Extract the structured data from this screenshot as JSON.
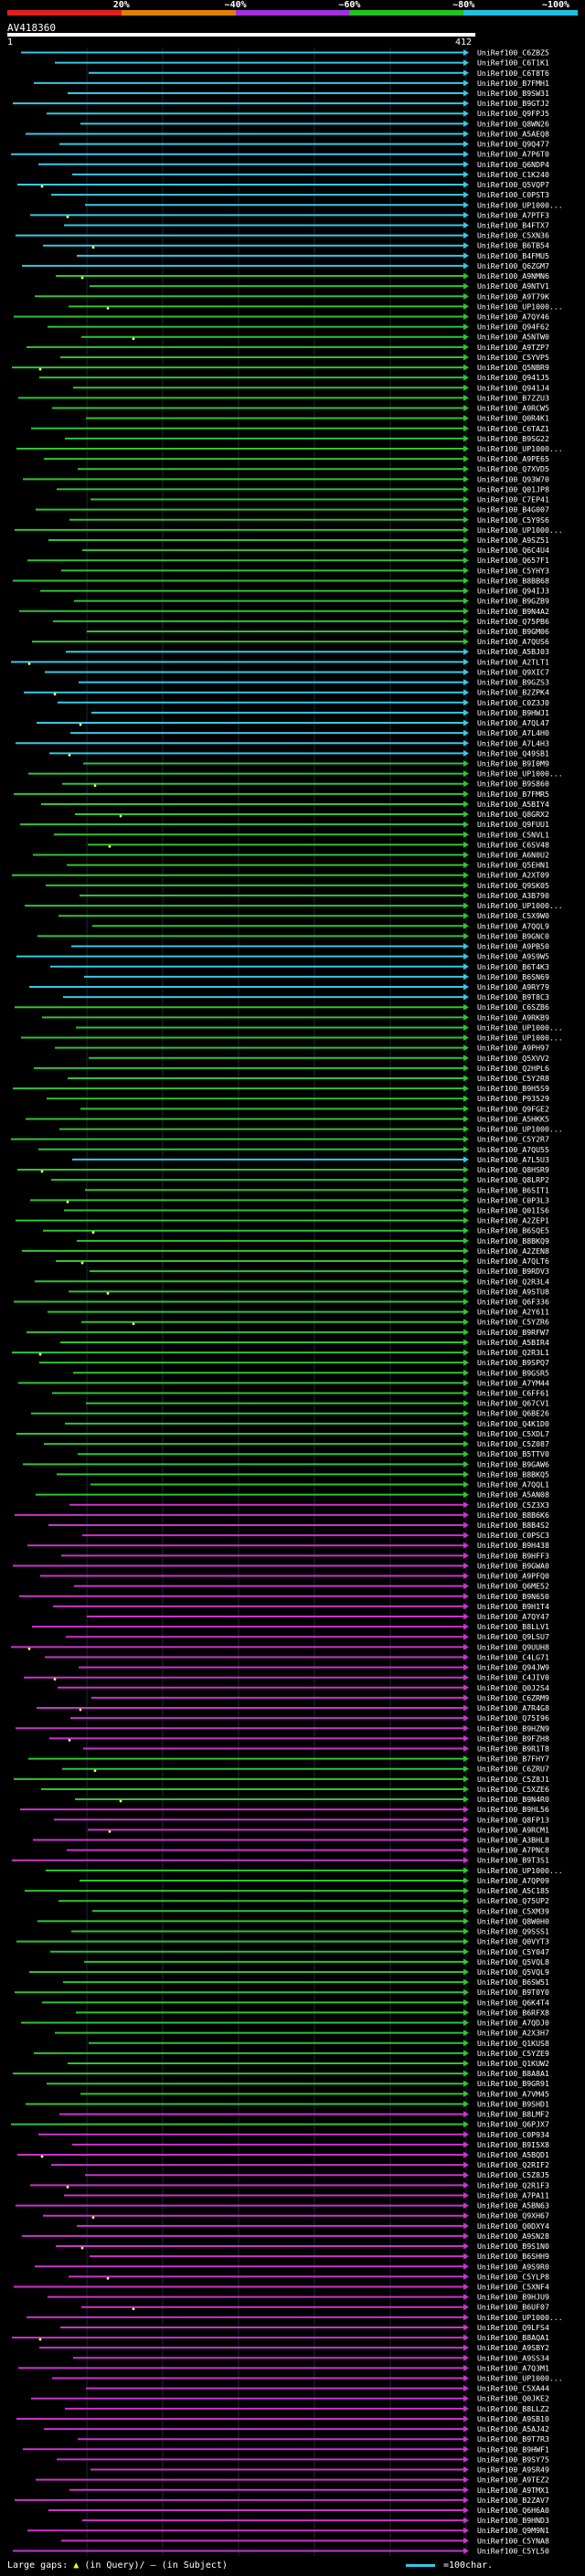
{
  "scale": {
    "labels": [
      "20%",
      "~40%",
      "~60%",
      "~80%",
      "~100%"
    ],
    "colors": [
      "#e02020",
      "#e08000",
      "#a030e0",
      "#20c020",
      "#20c0e0"
    ]
  },
  "query": {
    "name": "AV418360",
    "start": "1",
    "end": "412"
  },
  "series_colors": {
    "cyan": "#37c8e6",
    "green": "#2fc42f",
    "magenta": "#cc33cc"
  },
  "legend": {
    "gaps_label": "Large gaps:",
    "query_marker": "▲",
    "query_text": "(in Query)/",
    "subject_marker": "—",
    "subject_text": "(in Subject)",
    "scale_text": "=100char."
  },
  "hits": [
    {
      "id": "UniRef100_C6ZBZ5",
      "c": "cyan"
    },
    {
      "id": "UniRef100_C6T1K1",
      "c": "cyan"
    },
    {
      "id": "UniRef100_C6T8T6",
      "c": "cyan"
    },
    {
      "id": "UniRef100_B7FMH1",
      "c": "cyan"
    },
    {
      "id": "UniRef100_B9SW31",
      "c": "cyan"
    },
    {
      "id": "UniRef100_B9GTJ2",
      "c": "cyan"
    },
    {
      "id": "UniRef100_Q9FPJ5",
      "c": "cyan"
    },
    {
      "id": "UniRef100_Q8WN26",
      "c": "cyan"
    },
    {
      "id": "UniRef100_A5AEQ8",
      "c": "cyan"
    },
    {
      "id": "UniRef100_Q9Q477",
      "c": "cyan"
    },
    {
      "id": "UniRef100_A7P6T0",
      "c": "cyan"
    },
    {
      "id": "UniRef100_Q6NDP4",
      "c": "cyan"
    },
    {
      "id": "UniRef100_C1K240",
      "c": "cyan"
    },
    {
      "id": "UniRef100_Q5VQP7",
      "c": "cyan"
    },
    {
      "id": "UniRef100_C0PST3",
      "c": "cyan"
    },
    {
      "id": "UniRef100_UP1000...",
      "c": "cyan"
    },
    {
      "id": "UniRef100_A7PTF3",
      "c": "cyan"
    },
    {
      "id": "UniRef100_B4FTX7",
      "c": "cyan"
    },
    {
      "id": "UniRef100_C5XN36",
      "c": "cyan"
    },
    {
      "id": "UniRef100_B6TB54",
      "c": "cyan"
    },
    {
      "id": "UniRef100_B4FMU5",
      "c": "cyan"
    },
    {
      "id": "UniRef100_Q6ZGM7",
      "c": "cyan"
    },
    {
      "id": "UniRef100_A9NMN6",
      "c": "green"
    },
    {
      "id": "UniRef100_A9NTV1",
      "c": "green"
    },
    {
      "id": "UniRef100_A9T79K",
      "c": "green"
    },
    {
      "id": "UniRef100_UP1000...",
      "c": "green"
    },
    {
      "id": "UniRef100_A7QY46",
      "c": "green"
    },
    {
      "id": "UniRef100_Q94F62",
      "c": "green"
    },
    {
      "id": "UniRef100_A5NTW0",
      "c": "green"
    },
    {
      "id": "UniRef100_A9TZP7",
      "c": "green"
    },
    {
      "id": "UniRef100_C5YVP5",
      "c": "green"
    },
    {
      "id": "UniRef100_Q5NBR9",
      "c": "green"
    },
    {
      "id": "UniRef100_Q941J5",
      "c": "green"
    },
    {
      "id": "UniRef100_Q941J4",
      "c": "green"
    },
    {
      "id": "UniRef100_B7ZZU3",
      "c": "green"
    },
    {
      "id": "UniRef100_A9RCW5",
      "c": "green"
    },
    {
      "id": "UniRef100_Q0R4K1",
      "c": "green"
    },
    {
      "id": "UniRef100_C6TAZ1",
      "c": "green"
    },
    {
      "id": "UniRef100_B9SG22",
      "c": "green"
    },
    {
      "id": "UniRef100_UP1000...",
      "c": "green"
    },
    {
      "id": "UniRef100_A9PE65",
      "c": "green"
    },
    {
      "id": "UniRef100_Q7XVD5",
      "c": "green"
    },
    {
      "id": "UniRef100_Q93W70",
      "c": "green"
    },
    {
      "id": "UniRef100_Q01JP8",
      "c": "green"
    },
    {
      "id": "UniRef100_C7EP41",
      "c": "green"
    },
    {
      "id": "UniRef100_B4G007",
      "c": "green"
    },
    {
      "id": "UniRef100_C5Y9S6",
      "c": "green"
    },
    {
      "id": "UniRef100_UP1000...",
      "c": "green"
    },
    {
      "id": "UniRef100_A9SZ51",
      "c": "green"
    },
    {
      "id": "UniRef100_Q6C4U4",
      "c": "green"
    },
    {
      "id": "UniRef100_Q657F1",
      "c": "green"
    },
    {
      "id": "UniRef100_C5YHY3",
      "c": "green"
    },
    {
      "id": "UniRef100_B8BB68",
      "c": "green"
    },
    {
      "id": "UniRef100_Q94IJ3",
      "c": "green"
    },
    {
      "id": "UniRef100_B9GZB9",
      "c": "green"
    },
    {
      "id": "UniRef100_B9N4A2",
      "c": "green"
    },
    {
      "id": "UniRef100_Q75PB6",
      "c": "green"
    },
    {
      "id": "UniRef100_B9GM06",
      "c": "green"
    },
    {
      "id": "UniRef100_A7QUS6",
      "c": "green"
    },
    {
      "id": "UniRef100_A5BJ03",
      "c": "cyan"
    },
    {
      "id": "UniRef100_A2TLT1",
      "c": "cyan"
    },
    {
      "id": "UniRef100_Q9XIC7",
      "c": "cyan"
    },
    {
      "id": "UniRef100_B9GZS3",
      "c": "cyan"
    },
    {
      "id": "UniRef100_B2ZPK4",
      "c": "cyan"
    },
    {
      "id": "UniRef100_C0Z3J0",
      "c": "cyan"
    },
    {
      "id": "UniRef100_B9HWJ1",
      "c": "cyan"
    },
    {
      "id": "UniRef100_A7QL47",
      "c": "cyan"
    },
    {
      "id": "UniRef100_A7L4H0",
      "c": "cyan"
    },
    {
      "id": "UniRef100_A7L4H3",
      "c": "cyan"
    },
    {
      "id": "UniRef100_Q49SB1",
      "c": "cyan"
    },
    {
      "id": "UniRef100_B9I0M9",
      "c": "green"
    },
    {
      "id": "UniRef100_UP1000...",
      "c": "green"
    },
    {
      "id": "UniRef100_B9S860",
      "c": "green"
    },
    {
      "id": "UniRef100_B7FMR5",
      "c": "green"
    },
    {
      "id": "UniRef100_A5BIY4",
      "c": "green"
    },
    {
      "id": "UniRef100_Q8GRX2",
      "c": "green"
    },
    {
      "id": "UniRef100_Q9FUU1",
      "c": "green"
    },
    {
      "id": "UniRef100_C5NVL1",
      "c": "green"
    },
    {
      "id": "UniRef100_C6SV48",
      "c": "green"
    },
    {
      "id": "UniRef100_A6N0U2",
      "c": "green"
    },
    {
      "id": "UniRef100_Q5EHN1",
      "c": "green"
    },
    {
      "id": "UniRef100_A2XT09",
      "c": "green"
    },
    {
      "id": "UniRef100_Q9SK05",
      "c": "green"
    },
    {
      "id": "UniRef100_A3B790",
      "c": "green"
    },
    {
      "id": "UniRef100_UP1000...",
      "c": "green"
    },
    {
      "id": "UniRef100_C5X9W0",
      "c": "green"
    },
    {
      "id": "UniRef100_A7QQL9",
      "c": "green"
    },
    {
      "id": "UniRef100_B9GNC0",
      "c": "green"
    },
    {
      "id": "UniRef100_A9PB50",
      "c": "cyan"
    },
    {
      "id": "UniRef100_A9S9W5",
      "c": "cyan"
    },
    {
      "id": "UniRef100_B6T4K3",
      "c": "cyan"
    },
    {
      "id": "UniRef100_B6SN69",
      "c": "cyan"
    },
    {
      "id": "UniRef100_A9RY79",
      "c": "cyan"
    },
    {
      "id": "UniRef100_B9T8C3",
      "c": "cyan"
    },
    {
      "id": "UniRef100_C6SZB6",
      "c": "green"
    },
    {
      "id": "UniRef100_A9RKB9",
      "c": "green"
    },
    {
      "id": "UniRef100_UP1000...",
      "c": "green"
    },
    {
      "id": "UniRef100_UP1000...",
      "c": "green"
    },
    {
      "id": "UniRef100_A9PH97",
      "c": "green"
    },
    {
      "id": "UniRef100_Q5XVV2",
      "c": "green"
    },
    {
      "id": "UniRef100_Q2HPL6",
      "c": "green"
    },
    {
      "id": "UniRef100_C5Y2R8",
      "c": "green"
    },
    {
      "id": "UniRef100_B9H5S9",
      "c": "green"
    },
    {
      "id": "UniRef100_P93529",
      "c": "green"
    },
    {
      "id": "UniRef100_Q9FGE2",
      "c": "green"
    },
    {
      "id": "UniRef100_A5HKK5",
      "c": "green"
    },
    {
      "id": "UniRef100_UP1000...",
      "c": "green"
    },
    {
      "id": "UniRef100_C5Y2R7",
      "c": "green"
    },
    {
      "id": "UniRef100_A7QU55",
      "c": "green"
    },
    {
      "id": "UniRef100_A7L5U3",
      "c": "cyan"
    },
    {
      "id": "UniRef100_Q8HSR9",
      "c": "green"
    },
    {
      "id": "UniRef100_Q8LRP2",
      "c": "green"
    },
    {
      "id": "UniRef100_B6SIT1",
      "c": "green"
    },
    {
      "id": "UniRef100_C0P3L3",
      "c": "green"
    },
    {
      "id": "UniRef100_Q01IS6",
      "c": "green"
    },
    {
      "id": "UniRef100_A2ZEP1",
      "c": "green"
    },
    {
      "id": "UniRef100_B6SQE5",
      "c": "green"
    },
    {
      "id": "UniRef100_B8BKQ9",
      "c": "green"
    },
    {
      "id": "UniRef100_A2ZEN8",
      "c": "green"
    },
    {
      "id": "UniRef100_A7QLT6",
      "c": "green"
    },
    {
      "id": "UniRef100_B9RDV3",
      "c": "green"
    },
    {
      "id": "UniRef100_Q2R3L4",
      "c": "green"
    },
    {
      "id": "UniRef100_A9STU8",
      "c": "green"
    },
    {
      "id": "UniRef100_Q6F336",
      "c": "green"
    },
    {
      "id": "UniRef100_A2Y611",
      "c": "green"
    },
    {
      "id": "UniRef100_C5YZR6",
      "c": "green"
    },
    {
      "id": "UniRef100_B9RFW7",
      "c": "green"
    },
    {
      "id": "UniRef100_A5BIR4",
      "c": "green"
    },
    {
      "id": "UniRef100_Q2R3L1",
      "c": "green"
    },
    {
      "id": "UniRef100_B9SPQ7",
      "c": "green"
    },
    {
      "id": "UniRef100_B9GSR5",
      "c": "green"
    },
    {
      "id": "UniRef100_A7YM44",
      "c": "green"
    },
    {
      "id": "UniRef100_C6FF61",
      "c": "green"
    },
    {
      "id": "UniRef100_Q67CV1",
      "c": "green"
    },
    {
      "id": "UniRef100_Q6BE26",
      "c": "green"
    },
    {
      "id": "UniRef100_Q4K1D0",
      "c": "green"
    },
    {
      "id": "UniRef100_C5XDL7",
      "c": "green"
    },
    {
      "id": "UniRef100_C5Z087",
      "c": "green"
    },
    {
      "id": "UniRef100_B5TTV0",
      "c": "green"
    },
    {
      "id": "UniRef100_B9GAW6",
      "c": "green"
    },
    {
      "id": "UniRef100_B8BKQ5",
      "c": "green"
    },
    {
      "id": "UniRef100_A7QQL1",
      "c": "green"
    },
    {
      "id": "UniRef100_A5AN08",
      "c": "green"
    },
    {
      "id": "UniRef100_C5Z3X3",
      "c": "magenta"
    },
    {
      "id": "UniRef100_B8B6K6",
      "c": "magenta"
    },
    {
      "id": "UniRef100_B8B4S2",
      "c": "magenta"
    },
    {
      "id": "UniRef100_C0PSC3",
      "c": "magenta"
    },
    {
      "id": "UniRef100_B9H438",
      "c": "magenta"
    },
    {
      "id": "UniRef100_B9HFF3",
      "c": "magenta"
    },
    {
      "id": "UniRef100_B9GWA0",
      "c": "magenta"
    },
    {
      "id": "UniRef100_A9PFQ0",
      "c": "magenta"
    },
    {
      "id": "UniRef100_Q6ME52",
      "c": "magenta"
    },
    {
      "id": "UniRef100_B9N650",
      "c": "magenta"
    },
    {
      "id": "UniRef100_B9H1T4",
      "c": "magenta"
    },
    {
      "id": "UniRef100_A7QY47",
      "c": "magenta"
    },
    {
      "id": "UniRef100_B8LLV1",
      "c": "magenta"
    },
    {
      "id": "UniRef100_Q9LSU7",
      "c": "magenta"
    },
    {
      "id": "UniRef100_Q9UUH8",
      "c": "magenta"
    },
    {
      "id": "UniRef100_C4LG71",
      "c": "magenta"
    },
    {
      "id": "UniRef100_Q94JW9",
      "c": "magenta"
    },
    {
      "id": "UniRef100_C4JIV0",
      "c": "magenta"
    },
    {
      "id": "UniRef100_Q0J2S4",
      "c": "magenta"
    },
    {
      "id": "UniRef100_C6ZRM9",
      "c": "magenta"
    },
    {
      "id": "UniRef100_A7R4G8",
      "c": "magenta"
    },
    {
      "id": "UniRef100_Q75I96",
      "c": "magenta"
    },
    {
      "id": "UniRef100_B9HZN9",
      "c": "magenta"
    },
    {
      "id": "UniRef100_B9FZH8",
      "c": "magenta"
    },
    {
      "id": "UniRef100_B9R1T8",
      "c": "magenta"
    },
    {
      "id": "UniRef100_B7FHY7",
      "c": "green"
    },
    {
      "id": "UniRef100_C6ZRU7",
      "c": "green"
    },
    {
      "id": "UniRef100_C5Z8J1",
      "c": "green"
    },
    {
      "id": "UniRef100_C5XZE6",
      "c": "green"
    },
    {
      "id": "UniRef100_B9N4R0",
      "c": "green"
    },
    {
      "id": "UniRef100_B9HL56",
      "c": "magenta"
    },
    {
      "id": "UniRef100_Q8FP13",
      "c": "magenta"
    },
    {
      "id": "UniRef100_A9RCM1",
      "c": "magenta"
    },
    {
      "id": "UniRef100_A3BHL8",
      "c": "magenta"
    },
    {
      "id": "UniRef100_A7PNC8",
      "c": "magenta"
    },
    {
      "id": "UniRef100_B9T3S1",
      "c": "magenta"
    },
    {
      "id": "UniRef100_UP1000...",
      "c": "green"
    },
    {
      "id": "UniRef100_A7QP09",
      "c": "green"
    },
    {
      "id": "UniRef100_A5C185",
      "c": "green"
    },
    {
      "id": "UniRef100_Q75UP2",
      "c": "green"
    },
    {
      "id": "UniRef100_C5XM39",
      "c": "green"
    },
    {
      "id": "UniRef100_Q8W0H0",
      "c": "green"
    },
    {
      "id": "UniRef100_Q9SSS1",
      "c": "green"
    },
    {
      "id": "UniRef100_Q0VYT3",
      "c": "green"
    },
    {
      "id": "UniRef100_C5Y047",
      "c": "green"
    },
    {
      "id": "UniRef100_Q5VQL8",
      "c": "green"
    },
    {
      "id": "UniRef100_Q5VQL9",
      "c": "green"
    },
    {
      "id": "UniRef100_B6SW51",
      "c": "green"
    },
    {
      "id": "UniRef100_B9T0Y0",
      "c": "green"
    },
    {
      "id": "UniRef100_Q6K4T4",
      "c": "green"
    },
    {
      "id": "UniRef100_B6RFX8",
      "c": "green"
    },
    {
      "id": "UniRef100_A7QDJ0",
      "c": "green"
    },
    {
      "id": "UniRef100_A2X3H7",
      "c": "green"
    },
    {
      "id": "UniRef100_Q1KUS8",
      "c": "green"
    },
    {
      "id": "UniRef100_C5YZE9",
      "c": "green"
    },
    {
      "id": "UniRef100_Q1KUW2",
      "c": "green"
    },
    {
      "id": "UniRef100_B8A8A1",
      "c": "green"
    },
    {
      "id": "UniRef100_B9GR91",
      "c": "green"
    },
    {
      "id": "UniRef100_A7VM45",
      "c": "green"
    },
    {
      "id": "UniRef100_B9SHD1",
      "c": "green"
    },
    {
      "id": "UniRef100_B8LMF2",
      "c": "magenta"
    },
    {
      "id": "UniRef100_Q6PJX7",
      "c": "green"
    },
    {
      "id": "UniRef100_C0P934",
      "c": "magenta"
    },
    {
      "id": "UniRef100_B9I5X8",
      "c": "magenta"
    },
    {
      "id": "UniRef100_A5BQD1",
      "c": "magenta"
    },
    {
      "id": "UniRef100_Q2RIF2",
      "c": "magenta"
    },
    {
      "id": "UniRef100_C5Z8J5",
      "c": "magenta"
    },
    {
      "id": "UniRef100_Q2R1F3",
      "c": "magenta"
    },
    {
      "id": "UniRef100_A7PA11",
      "c": "magenta"
    },
    {
      "id": "UniRef100_A5BN63",
      "c": "magenta"
    },
    {
      "id": "UniRef100_Q9XH67",
      "c": "magenta"
    },
    {
      "id": "UniRef100_Q0DXY4",
      "c": "magenta"
    },
    {
      "id": "UniRef100_A9SN28",
      "c": "magenta"
    },
    {
      "id": "UniRef100_B9S1N0",
      "c": "magenta"
    },
    {
      "id": "UniRef100_B6SHH9",
      "c": "magenta"
    },
    {
      "id": "UniRef100_A9S9R0",
      "c": "magenta"
    },
    {
      "id": "UniRef100_C5YLP8",
      "c": "magenta"
    },
    {
      "id": "UniRef100_C5XNF4",
      "c": "magenta"
    },
    {
      "id": "UniRef100_B9HJU9",
      "c": "magenta"
    },
    {
      "id": "UniRef100_B6UF07",
      "c": "magenta"
    },
    {
      "id": "UniRef100_UP1000...",
      "c": "magenta"
    },
    {
      "id": "UniRef100_Q9LFS4",
      "c": "magenta"
    },
    {
      "id": "UniRef100_B8AQA1",
      "c": "magenta"
    },
    {
      "id": "UniRef100_A9SBY2",
      "c": "magenta"
    },
    {
      "id": "UniRef100_A9SS34",
      "c": "magenta"
    },
    {
      "id": "UniRef100_A7Q3M1",
      "c": "magenta"
    },
    {
      "id": "UniRef100_UP1000...",
      "c": "magenta"
    },
    {
      "id": "UniRef100_C5XA44",
      "c": "magenta"
    },
    {
      "id": "UniRef100_Q0JKE2",
      "c": "magenta"
    },
    {
      "id": "UniRef100_B8LLZ2",
      "c": "magenta"
    },
    {
      "id": "UniRef100_A9SB10",
      "c": "magenta"
    },
    {
      "id": "UniRef100_A5AJ42",
      "c": "magenta"
    },
    {
      "id": "UniRef100_B9T7R3",
      "c": "magenta"
    },
    {
      "id": "UniRef100_B9HWF1",
      "c": "magenta"
    },
    {
      "id": "UniRef100_B9SY75",
      "c": "magenta"
    },
    {
      "id": "UniRef100_A9SR49",
      "c": "magenta"
    },
    {
      "id": "UniRef100_A9TEZ2",
      "c": "magenta"
    },
    {
      "id": "UniRef100_A9TMX1",
      "c": "magenta"
    },
    {
      "id": "UniRef100_B2ZAV7",
      "c": "magenta"
    },
    {
      "id": "UniRef100_Q6H6A0",
      "c": "magenta"
    },
    {
      "id": "UniRef100_B9HND3",
      "c": "magenta"
    },
    {
      "id": "UniRef100_Q9M9N1",
      "c": "magenta"
    },
    {
      "id": "UniRef100_C5YNA8",
      "c": "magenta"
    },
    {
      "id": "UniRef100_C5YL50",
      "c": "magenta"
    }
  ]
}
